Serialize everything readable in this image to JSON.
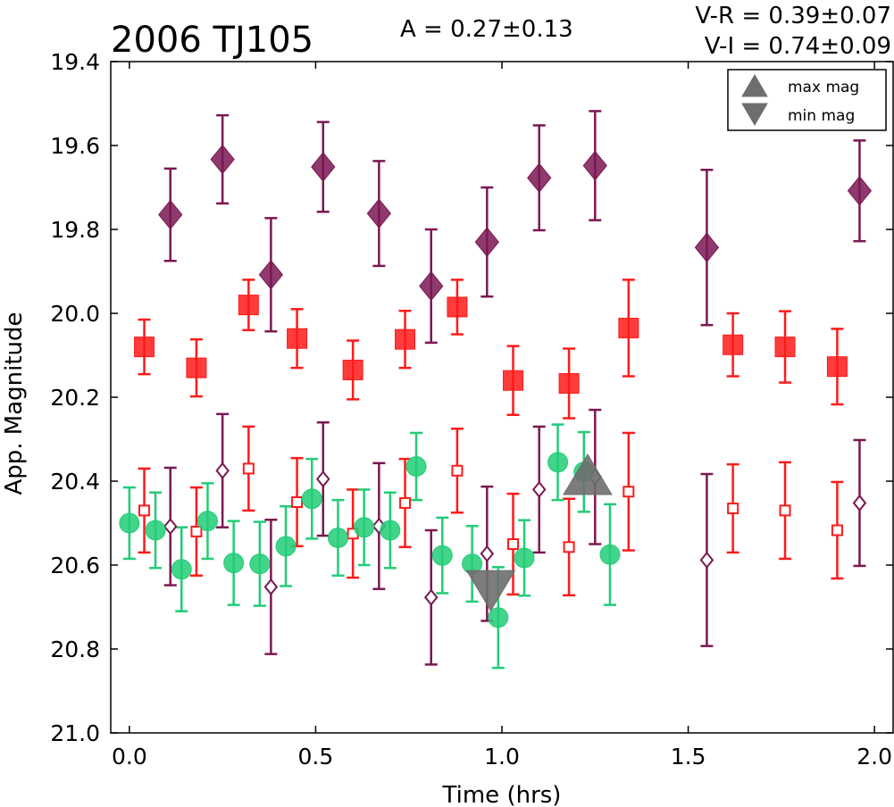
{
  "chart_data": {
    "type": "scatter",
    "title": "2006 TJ105",
    "amplitude_text": "A  = 0.27±0.13",
    "vr_text": "V-R = 0.39±0.07",
    "vi_text": "V-I  = 0.74±0.09",
    "xlabel": "Time (hrs)",
    "ylabel": "App. Magnitude",
    "xlim": [
      -0.05,
      2.05
    ],
    "ylim": [
      21.0,
      19.4
    ],
    "y_inverted": true,
    "x_ticks": [
      "0.0",
      "0.5",
      "1.0",
      "1.5",
      "2.0"
    ],
    "y_ticks": [
      "19.4",
      "19.6",
      "19.8",
      "20.0",
      "20.2",
      "20.4",
      "20.6",
      "20.8",
      "21.0"
    ],
    "grid": false,
    "legend_position": "top-right",
    "legend": [
      {
        "label": "max mag",
        "marker": "triangle-up"
      },
      {
        "label": "min mag",
        "marker": "triangle-down"
      }
    ],
    "colors": {
      "purple": "#7b1752",
      "red": "#ff1a1a",
      "green": "#22cc77",
      "extreme": "#6e6e6e"
    },
    "series": [
      {
        "marker": "diamond-filled",
        "color": "#7b1752",
        "points": [
          {
            "x": 0.11,
            "y": 19.765,
            "err": 0.11
          },
          {
            "x": 0.25,
            "y": 19.633,
            "err": 0.105
          },
          {
            "x": 0.38,
            "y": 19.908,
            "err": 0.135
          },
          {
            "x": 0.52,
            "y": 19.651,
            "err": 0.107
          },
          {
            "x": 0.67,
            "y": 19.762,
            "err": 0.125
          },
          {
            "x": 0.81,
            "y": 19.935,
            "err": 0.135
          },
          {
            "x": 0.96,
            "y": 19.83,
            "err": 0.13
          },
          {
            "x": 1.1,
            "y": 19.677,
            "err": 0.125
          },
          {
            "x": 1.25,
            "y": 19.648,
            "err": 0.13
          },
          {
            "x": 1.55,
            "y": 19.843,
            "err": 0.185
          },
          {
            "x": 1.96,
            "y": 19.708,
            "err": 0.12
          }
        ]
      },
      {
        "marker": "square-filled",
        "color": "#ff1a1a",
        "points": [
          {
            "x": 0.04,
            "y": 20.08,
            "err": 0.065
          },
          {
            "x": 0.18,
            "y": 20.13,
            "err": 0.068
          },
          {
            "x": 0.32,
            "y": 19.98,
            "err": 0.06
          },
          {
            "x": 0.45,
            "y": 20.06,
            "err": 0.07
          },
          {
            "x": 0.6,
            "y": 20.135,
            "err": 0.07
          },
          {
            "x": 0.74,
            "y": 20.062,
            "err": 0.068
          },
          {
            "x": 0.88,
            "y": 19.985,
            "err": 0.065
          },
          {
            "x": 1.03,
            "y": 20.16,
            "err": 0.082
          },
          {
            "x": 1.18,
            "y": 20.167,
            "err": 0.083
          },
          {
            "x": 1.34,
            "y": 20.035,
            "err": 0.115
          },
          {
            "x": 1.62,
            "y": 20.075,
            "err": 0.075
          },
          {
            "x": 1.76,
            "y": 20.08,
            "err": 0.085
          },
          {
            "x": 1.9,
            "y": 20.127,
            "err": 0.09
          }
        ]
      },
      {
        "marker": "circle-filled",
        "color": "#22cc77",
        "points": [
          {
            "x": 0.0,
            "y": 20.5,
            "err": 0.085
          },
          {
            "x": 0.07,
            "y": 20.517,
            "err": 0.09
          },
          {
            "x": 0.14,
            "y": 20.61,
            "err": 0.1
          },
          {
            "x": 0.21,
            "y": 20.495,
            "err": 0.09
          },
          {
            "x": 0.28,
            "y": 20.595,
            "err": 0.1
          },
          {
            "x": 0.35,
            "y": 20.597,
            "err": 0.1
          },
          {
            "x": 0.42,
            "y": 20.555,
            "err": 0.095
          },
          {
            "x": 0.49,
            "y": 20.442,
            "err": 0.095
          },
          {
            "x": 0.56,
            "y": 20.535,
            "err": 0.09
          },
          {
            "x": 0.63,
            "y": 20.51,
            "err": 0.09
          },
          {
            "x": 0.7,
            "y": 20.517,
            "err": 0.09
          },
          {
            "x": 0.77,
            "y": 20.365,
            "err": 0.08
          },
          {
            "x": 0.84,
            "y": 20.577,
            "err": 0.09
          },
          {
            "x": 0.92,
            "y": 20.597,
            "err": 0.09
          },
          {
            "x": 0.99,
            "y": 20.725,
            "err": 0.12
          },
          {
            "x": 1.06,
            "y": 20.583,
            "err": 0.09
          },
          {
            "x": 1.15,
            "y": 20.355,
            "err": 0.09
          },
          {
            "x": 1.22,
            "y": 20.378,
            "err": 0.095
          },
          {
            "x": 1.29,
            "y": 20.575,
            "err": 0.12
          }
        ]
      },
      {
        "marker": "diamond-open",
        "color": "#7b1752",
        "points": [
          {
            "x": 0.11,
            "y": 20.508,
            "err": 0.14
          },
          {
            "x": 0.25,
            "y": 20.375,
            "err": 0.135
          },
          {
            "x": 0.38,
            "y": 20.652,
            "err": 0.16
          },
          {
            "x": 0.52,
            "y": 20.395,
            "err": 0.135
          },
          {
            "x": 0.67,
            "y": 20.507,
            "err": 0.15
          },
          {
            "x": 0.81,
            "y": 20.677,
            "err": 0.16
          },
          {
            "x": 0.96,
            "y": 20.573,
            "err": 0.16
          },
          {
            "x": 1.1,
            "y": 20.42,
            "err": 0.15
          },
          {
            "x": 1.25,
            "y": 20.39,
            "err": 0.16
          },
          {
            "x": 1.55,
            "y": 20.588,
            "err": 0.205
          },
          {
            "x": 1.96,
            "y": 20.452,
            "err": 0.15
          }
        ]
      },
      {
        "marker": "square-open",
        "color": "#ff1a1a",
        "points": [
          {
            "x": 0.04,
            "y": 20.47,
            "err": 0.1
          },
          {
            "x": 0.18,
            "y": 20.52,
            "err": 0.105
          },
          {
            "x": 0.32,
            "y": 20.37,
            "err": 0.1
          },
          {
            "x": 0.45,
            "y": 20.45,
            "err": 0.105
          },
          {
            "x": 0.6,
            "y": 20.525,
            "err": 0.105
          },
          {
            "x": 0.74,
            "y": 20.452,
            "err": 0.105
          },
          {
            "x": 0.88,
            "y": 20.375,
            "err": 0.1
          },
          {
            "x": 1.03,
            "y": 20.55,
            "err": 0.12
          },
          {
            "x": 1.18,
            "y": 20.557,
            "err": 0.115
          },
          {
            "x": 1.34,
            "y": 20.425,
            "err": 0.14
          },
          {
            "x": 1.62,
            "y": 20.465,
            "err": 0.105
          },
          {
            "x": 1.76,
            "y": 20.47,
            "err": 0.115
          },
          {
            "x": 1.9,
            "y": 20.517,
            "err": 0.115
          }
        ]
      }
    ],
    "extremes": [
      {
        "type": "max",
        "marker": "triangle-up",
        "x": 1.23,
        "y": 20.4
      },
      {
        "type": "min",
        "marker": "triangle-down",
        "x": 0.97,
        "y": 20.645
      }
    ]
  }
}
